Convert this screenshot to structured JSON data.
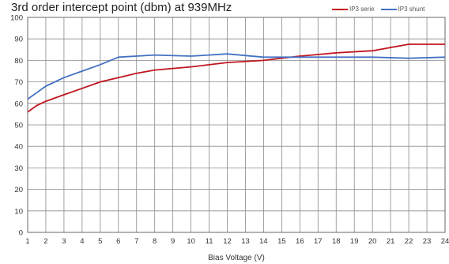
{
  "chart_data": {
    "type": "line",
    "title": "3rd order intercept point (dbm) at 939MHz",
    "xlabel": "Bias Voltage (V)",
    "ylabel": "",
    "xlim": [
      1,
      24
    ],
    "ylim": [
      0,
      100
    ],
    "x_ticks": [
      1,
      2,
      3,
      4,
      5,
      6,
      7,
      8,
      9,
      10,
      11,
      12,
      13,
      14,
      15,
      16,
      17,
      18,
      19,
      20,
      21,
      22,
      23,
      24
    ],
    "y_ticks": [
      0,
      10,
      20,
      30,
      40,
      50,
      60,
      70,
      80,
      90,
      100
    ],
    "grid": true,
    "legend": "top-right",
    "series": [
      {
        "name": "IP3 serie",
        "color": "#c0161e",
        "x": [
          1,
          1.5,
          2,
          3,
          4,
          5,
          6,
          7,
          8,
          10,
          12,
          14,
          16,
          18,
          20,
          22,
          24
        ],
        "y": [
          56,
          59,
          61,
          64,
          67,
          70,
          72,
          74,
          75.5,
          77,
          79,
          80,
          82,
          83.5,
          84.5,
          87.5,
          87.5
        ]
      },
      {
        "name": "IP3 shunt",
        "color": "#4472c4",
        "x": [
          1,
          1.5,
          2,
          3,
          4,
          5,
          6,
          8,
          10,
          12,
          14,
          16,
          18,
          20,
          22,
          24
        ],
        "y": [
          62,
          65,
          68,
          72,
          75,
          78,
          81.5,
          82.5,
          82,
          83,
          81.5,
          81.5,
          81.5,
          81.5,
          81,
          81.5
        ]
      }
    ]
  }
}
